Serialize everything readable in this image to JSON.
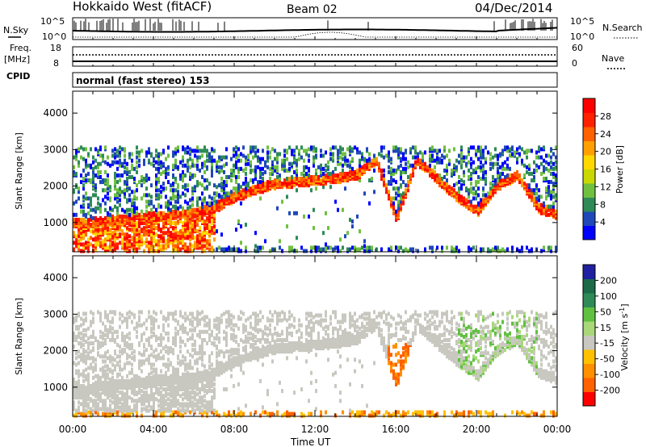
{
  "header": {
    "radar": "Hokkaido West (fitACF)",
    "beam": "Beam 02",
    "date": "04/Dec/2014"
  },
  "nsky_panel": {
    "left_label": "N.Sky",
    "right_label": "N.Search",
    "left_ticks": [
      "10^5",
      "10^0"
    ],
    "right_ticks": [
      "10^5",
      "10^0"
    ]
  },
  "freq_panel": {
    "left_label_1": "Freq.",
    "left_label_2": "[MHz]",
    "left_ticks": [
      "18",
      "8"
    ],
    "right_label": "Nave",
    "right_ticks": [
      "60",
      "0"
    ],
    "cpid_label": "CPID"
  },
  "cpid_panel": {
    "text": "normal (fast stereo) 153"
  },
  "chart_data": [
    {
      "type": "heatmap",
      "name": "power",
      "ylabel": "Slant Range [km]",
      "yticks": [
        "1000",
        "2000",
        "3000",
        "4000"
      ],
      "ylim": [
        200,
        4600
      ],
      "xlim_hours": [
        0,
        24
      ],
      "colorbar_label": "Power [dB]",
      "colorbar_ticks": [
        "4",
        "8",
        "12",
        "16",
        "20",
        "24",
        "28"
      ],
      "colorbar_colors": [
        "#0000ff",
        "#1f48b8",
        "#2e8b57",
        "#70c040",
        "#c8d800",
        "#ffd800",
        "#ffa000",
        "#ff6000",
        "#ff2000",
        "#ff0000"
      ],
      "echo_band_km": [
        [
          0,
          1000
        ],
        [
          1,
          1000
        ],
        [
          2,
          1050
        ],
        [
          3,
          1100
        ],
        [
          4,
          1150
        ],
        [
          5,
          1200
        ],
        [
          6,
          1250
        ],
        [
          7,
          1400
        ],
        [
          8,
          1700
        ],
        [
          9,
          1900
        ],
        [
          10,
          2050
        ],
        [
          11,
          2100
        ],
        [
          12,
          2150
        ],
        [
          13,
          2200
        ],
        [
          14,
          2300
        ],
        [
          15,
          2700
        ],
        [
          16,
          1100
        ],
        [
          17,
          2700
        ],
        [
          18,
          2200
        ],
        [
          19,
          1700
        ],
        [
          20,
          1300
        ],
        [
          21,
          2000
        ],
        [
          22,
          2300
        ],
        [
          23,
          1400
        ],
        [
          24,
          1200
        ]
      ]
    },
    {
      "type": "heatmap",
      "name": "velocity",
      "ylabel": "Slant Range [km]",
      "yticks": [
        "1000",
        "2000",
        "3000",
        "4000"
      ],
      "ylim": [
        200,
        4600
      ],
      "xlim_hours": [
        0,
        24
      ],
      "colorbar_label": "Velocity [m s-1]",
      "colorbar_ticks": [
        "200",
        "100",
        "50",
        "15",
        "-15",
        "-50",
        "-100",
        "-200"
      ],
      "colorbar_colors": [
        "#2020a0",
        "#1c6a48",
        "#2e8b57",
        "#60c040",
        "#a8d878",
        "#c8c8c0",
        "#ffc000",
        "#ff9000",
        "#ff6000",
        "#ff0000"
      ],
      "xlabel": "Time UT",
      "xticks": [
        "00:00",
        "04:00",
        "08:00",
        "12:00",
        "16:00",
        "20:00",
        "00:00"
      ]
    }
  ],
  "colors": {
    "axis": "#000000",
    "panel_bg": "#ffffff"
  }
}
